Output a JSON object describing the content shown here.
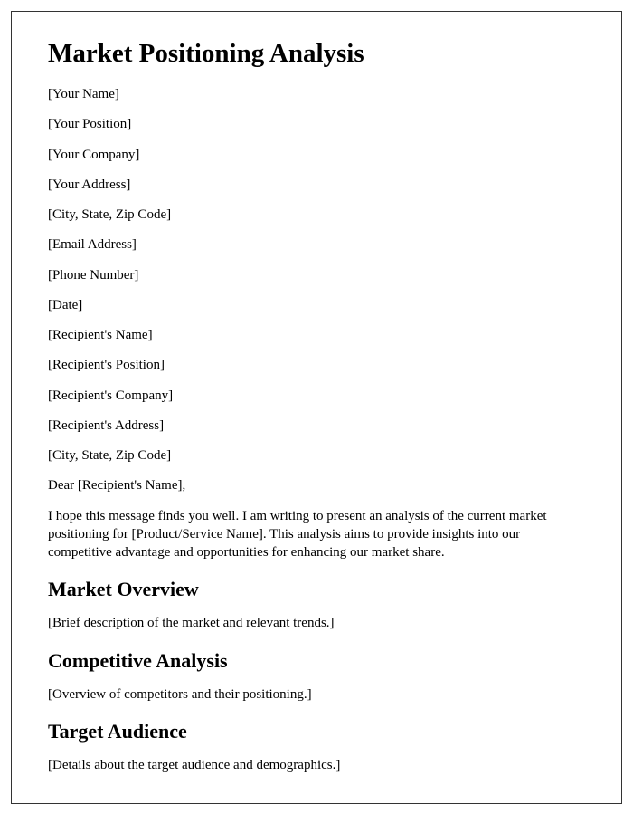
{
  "document": {
    "title": "Market Positioning Analysis",
    "sender": {
      "name": "[Your Name]",
      "position": "[Your Position]",
      "company": "[Your Company]",
      "address": "[Your Address]",
      "city_state_zip": "[City, State, Zip Code]",
      "email": "[Email Address]",
      "phone": "[Phone Number]",
      "date": "[Date]"
    },
    "recipient": {
      "name": "[Recipient's Name]",
      "position": "[Recipient's Position]",
      "company": "[Recipient's Company]",
      "address": "[Recipient's Address]",
      "city_state_zip": "[City, State, Zip Code]"
    },
    "salutation": "Dear [Recipient's Name],",
    "intro_paragraph": "I hope this message finds you well. I am writing to present an analysis of the current market positioning for [Product/Service Name]. This analysis aims to provide insights into our competitive advantage and opportunities for enhancing our market share.",
    "sections": {
      "market_overview": {
        "heading": "Market Overview",
        "body": "[Brief description of the market and relevant trends.]"
      },
      "competitive_analysis": {
        "heading": "Competitive Analysis",
        "body": "[Overview of competitors and their positioning.]"
      },
      "target_audience": {
        "heading": "Target Audience",
        "body": "[Details about the target audience and demographics.]"
      }
    }
  },
  "styles": {
    "title_fontsize": 29,
    "heading_fontsize": 22,
    "body_fontsize": 15,
    "text_color": "#000000",
    "background_color": "#ffffff",
    "border_color": "#333333",
    "font_family": "Times New Roman"
  }
}
